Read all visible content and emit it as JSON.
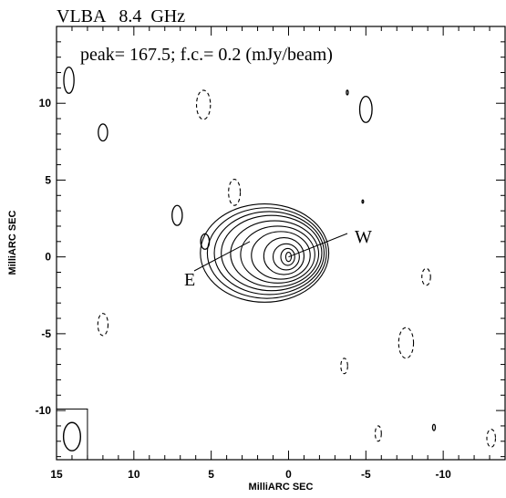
{
  "chart_data": {
    "type": "contour",
    "title": "VLBA   8.4  GHz",
    "annotation": "peak= 167.5; f.c.= 0.2 (mJy/beam)",
    "xlabel": "MilliARC SEC",
    "ylabel": "MilliARC SEC",
    "xlim": [
      15,
      -14
    ],
    "ylim": [
      -13.2,
      15.0
    ],
    "x_ticks": [
      15,
      10,
      5,
      0,
      -5,
      -10
    ],
    "x_tick_labels": [
      "15",
      "10",
      "5",
      "0",
      "-5",
      "-10"
    ],
    "y_ticks": [
      10,
      5,
      0,
      -5,
      -10
    ],
    "y_tick_labels": [
      "10",
      "5",
      "0",
      "-5",
      "-10"
    ],
    "x_minor_step": 1,
    "y_minor_step": 1,
    "peak_mJy_per_beam": 167.5,
    "first_contour_mJy_per_beam": 0.2,
    "components": [
      {
        "label": "E",
        "x": 2.5,
        "y": 1.0
      },
      {
        "label": "W",
        "x": 0.0,
        "y": 0.0
      }
    ],
    "main_source_contours": [
      {
        "cx": 1.55,
        "cy": 0.25,
        "rx": 4.15,
        "ry": 3.2
      },
      {
        "cx": 1.4,
        "cy": 0.25,
        "rx": 3.85,
        "ry": 2.95
      },
      {
        "cx": 1.25,
        "cy": 0.25,
        "rx": 3.55,
        "ry": 2.7
      },
      {
        "cx": 1.1,
        "cy": 0.25,
        "rx": 3.25,
        "ry": 2.45
      },
      {
        "cx": 0.9,
        "cy": 0.2,
        "rx": 2.85,
        "ry": 2.15
      },
      {
        "cx": 0.7,
        "cy": 0.15,
        "rx": 2.4,
        "ry": 1.85
      },
      {
        "cx": 0.5,
        "cy": 0.1,
        "rx": 1.9,
        "ry": 1.55
      },
      {
        "cx": 0.3,
        "cy": 0.05,
        "rx": 1.3,
        "ry": 1.2
      },
      {
        "cx": 0.15,
        "cy": 0.0,
        "rx": 0.85,
        "ry": 0.85
      },
      {
        "cx": 0.05,
        "cy": 0.0,
        "rx": 0.45,
        "ry": 0.55
      },
      {
        "cx": 0.0,
        "cy": 0.0,
        "rx": 0.18,
        "ry": 0.3
      }
    ],
    "positive_islands": [
      {
        "x": 14.2,
        "y": 11.5,
        "rx": 0.33,
        "ry": 0.85
      },
      {
        "x": 12.0,
        "y": 8.1,
        "rx": 0.3,
        "ry": 0.55
      },
      {
        "x": 7.2,
        "y": 2.7,
        "rx": 0.33,
        "ry": 0.65
      },
      {
        "x": 5.4,
        "y": 1.0,
        "rx": 0.28,
        "ry": 0.5
      },
      {
        "x": -5.0,
        "y": 9.6,
        "rx": 0.4,
        "ry": 0.85
      },
      {
        "x": -3.8,
        "y": 10.7,
        "rx": 0.06,
        "ry": 0.15
      },
      {
        "x": -4.8,
        "y": 3.6,
        "rx": 0.05,
        "ry": 0.1
      },
      {
        "x": -9.4,
        "y": -11.1,
        "rx": 0.09,
        "ry": 0.2
      }
    ],
    "negative_islands": [
      {
        "x": 5.5,
        "y": 9.9,
        "rx": 0.45,
        "ry": 0.95
      },
      {
        "x": 3.5,
        "y": 4.2,
        "rx": 0.38,
        "ry": 0.85
      },
      {
        "x": -8.9,
        "y": -1.3,
        "rx": 0.28,
        "ry": 0.55
      },
      {
        "x": -7.6,
        "y": -5.6,
        "rx": 0.48,
        "ry": 1.0
      },
      {
        "x": 12.0,
        "y": -4.4,
        "rx": 0.33,
        "ry": 0.72
      },
      {
        "x": -3.6,
        "y": -7.1,
        "rx": 0.22,
        "ry": 0.5
      },
      {
        "x": -5.8,
        "y": -11.5,
        "rx": 0.2,
        "ry": 0.5
      },
      {
        "x": -13.1,
        "y": -11.8,
        "rx": 0.28,
        "ry": 0.58
      }
    ],
    "beam": {
      "x": 14.0,
      "y": -11.7,
      "rx": 0.55,
      "ry": 0.92
    },
    "beam_box": {
      "x_min": 13.0,
      "x_max": 15.0,
      "y_min": -13.2,
      "y_max": -9.9
    }
  }
}
